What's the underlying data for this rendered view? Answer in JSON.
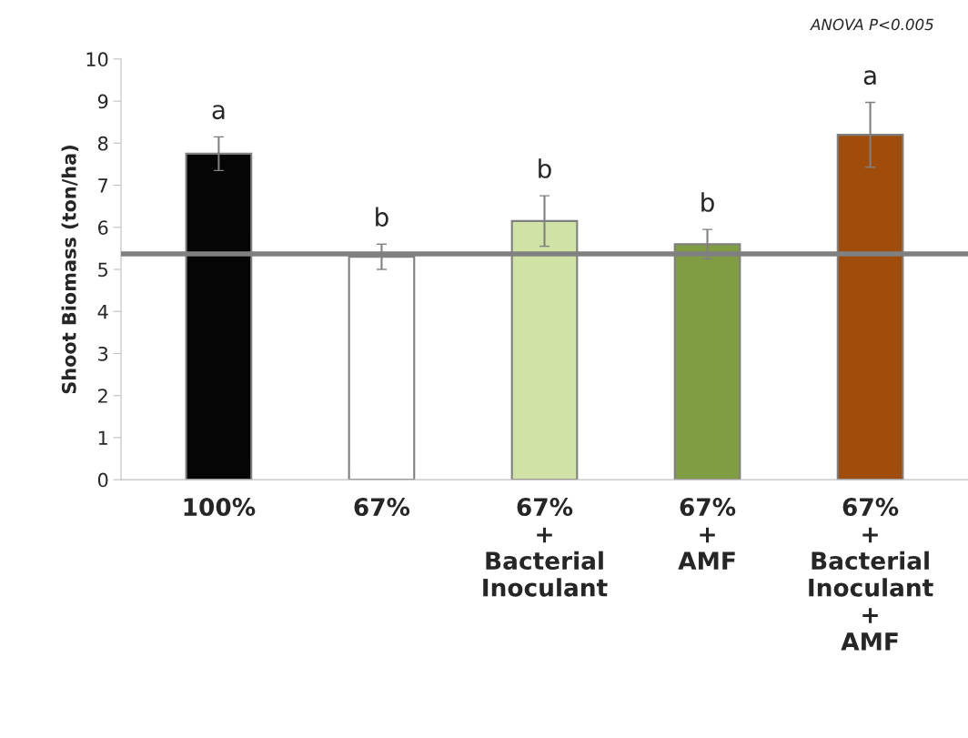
{
  "chart_data": {
    "type": "bar",
    "ylabel": "Shoot Biomass (ton/ha)",
    "categories": [
      "100%",
      "67%",
      "67%\n+\nBacterial\nInoculant",
      "67%\n+\nAMF",
      "67%\n+\nBacterial\nInoculant\n+\nAMF"
    ],
    "values": [
      7.75,
      5.3,
      6.15,
      5.6,
      8.2
    ],
    "errors": [
      0.4,
      0.3,
      0.6,
      0.35,
      0.77
    ],
    "colors": [
      "#050505",
      "#ffffff",
      "#d0e2a6",
      "#809d44",
      "#a04d0c"
    ],
    "ylim": [
      0,
      10
    ],
    "yticks": [
      0,
      1,
      2,
      3,
      4,
      5,
      6,
      7,
      8,
      9,
      10
    ],
    "grid": false,
    "ref_lines": [
      {
        "axis": "y",
        "value": 5.37,
        "color": "#808080"
      }
    ],
    "annotations": [
      "ANOVA P<0.005",
      "a",
      "b",
      "b",
      "b",
      "a"
    ]
  }
}
